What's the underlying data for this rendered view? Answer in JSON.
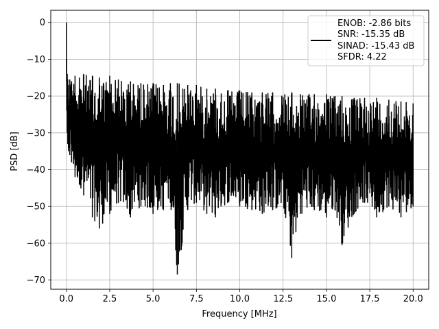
{
  "chart_data": {
    "type": "line",
    "title": "",
    "xlabel": "Frequency [MHz]",
    "ylabel": "PSD [dB]",
    "xlim": [
      -0.9,
      20.9
    ],
    "ylim": [
      -72.5,
      3.3
    ],
    "xticks": [
      0.0,
      2.5,
      5.0,
      7.5,
      10.0,
      12.5,
      15.0,
      17.5,
      20.0
    ],
    "xtick_labels": [
      "0.0",
      "2.5",
      "5.0",
      "7.5",
      "10.0",
      "12.5",
      "15.0",
      "17.5",
      "20.0"
    ],
    "yticks": [
      0,
      -10,
      -20,
      -30,
      -40,
      -50,
      -60,
      -70
    ],
    "ytick_labels": [
      "0",
      "−10",
      "−20",
      "−30",
      "−40",
      "−50",
      "−60",
      "−70"
    ],
    "grid": true,
    "legend_position": "top-right",
    "series": [
      {
        "color": "#000000",
        "legend_lines": [
          "ENOB: -2.86 bits",
          "SNR: -15.35 dB",
          "SINAD: -15.43 dB",
          "SFDR: 4.22"
        ],
        "x": [
          0.0,
          0.02,
          0.05,
          0.08,
          0.12,
          0.2,
          0.3,
          0.5,
          0.75,
          1.0,
          1.5,
          1.9,
          2.5,
          3.0,
          3.7,
          4.3,
          5.0,
          5.6,
          6.0,
          6.4,
          7.0,
          7.5,
          8.1,
          8.6,
          9.3,
          10.0,
          10.7,
          11.3,
          11.9,
          12.6,
          13.0,
          13.5,
          14.3,
          15.0,
          15.5,
          15.9,
          16.6,
          17.2,
          17.9,
          18.6,
          19.3,
          20.0
        ],
        "y_upper": [
          0.0,
          -10.0,
          -14.0,
          -15.5,
          -17.0,
          -15.5,
          -16.0,
          -14.5,
          -15.0,
          -14.0,
          -14.5,
          -15.0,
          -14.5,
          -15.5,
          -16.0,
          -16.5,
          -16.5,
          -17.0,
          -16.5,
          -16.5,
          -17.0,
          -17.0,
          -18.0,
          -18.0,
          -18.5,
          -18.5,
          -19.0,
          -19.0,
          -19.0,
          -19.5,
          -19.0,
          -19.5,
          -19.5,
          -19.5,
          -20.0,
          -20.0,
          -20.5,
          -20.5,
          -20.5,
          -21.0,
          -21.5,
          -22.0
        ],
        "y_lower": [
          -5.0,
          -24.0,
          -30.0,
          -33.0,
          -35.0,
          -36.0,
          -38.0,
          -42.0,
          -44.0,
          -47.0,
          -53.0,
          -56.0,
          -52.0,
          -49.0,
          -53.0,
          -50.0,
          -52.0,
          -51.0,
          -49.0,
          -68.5,
          -51.0,
          -49.0,
          -52.0,
          -53.0,
          -49.0,
          -50.0,
          -51.0,
          -52.0,
          -51.0,
          -52.0,
          -64.0,
          -52.0,
          -51.0,
          -53.0,
          -51.0,
          -60.5,
          -52.0,
          -49.0,
          -53.0,
          -50.0,
          -53.0,
          -50.0
        ]
      }
    ]
  }
}
